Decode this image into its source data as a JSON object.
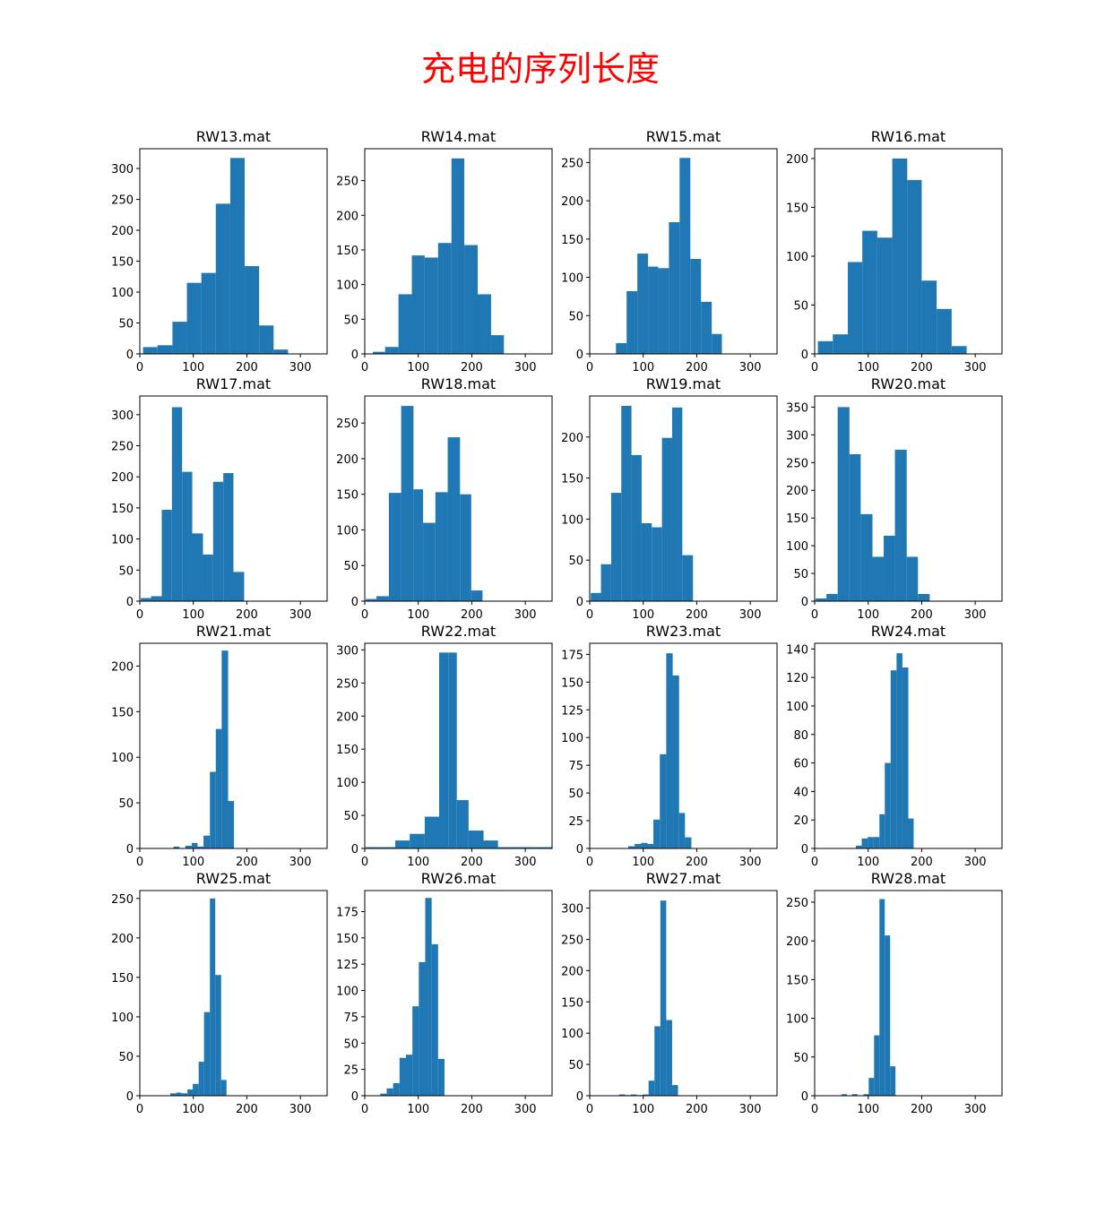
{
  "figure": {
    "title": "充电的序列长度",
    "title_color": "#ff0000",
    "bar_color": "#1f77b4"
  },
  "chart_data": [
    {
      "type": "bar",
      "title": "RW13.mat",
      "xlim": [
        0,
        350
      ],
      "xticks": [
        0,
        100,
        200,
        300
      ],
      "ylim": [
        0,
        332
      ],
      "yticks": [
        0,
        50,
        100,
        150,
        200,
        250,
        300
      ],
      "bins": [
        [
          6,
          33,
          11
        ],
        [
          33,
          61,
          14
        ],
        [
          61,
          88,
          52
        ],
        [
          88,
          115,
          115
        ],
        [
          115,
          142,
          131
        ],
        [
          142,
          169,
          243
        ],
        [
          169,
          196,
          317
        ],
        [
          196,
          223,
          142
        ],
        [
          223,
          250,
          46
        ],
        [
          250,
          277,
          7
        ]
      ]
    },
    {
      "type": "bar",
      "title": "RW14.mat",
      "xlim": [
        0,
        350
      ],
      "xticks": [
        0,
        100,
        200,
        300
      ],
      "ylim": [
        0,
        296
      ],
      "yticks": [
        0,
        50,
        100,
        150,
        200,
        250
      ],
      "bins": [
        [
          15,
          38,
          3
        ],
        [
          38,
          63,
          10
        ],
        [
          63,
          88,
          86
        ],
        [
          88,
          112,
          142
        ],
        [
          112,
          137,
          139
        ],
        [
          137,
          162,
          160
        ],
        [
          162,
          186,
          282
        ],
        [
          186,
          211,
          157
        ],
        [
          211,
          236,
          86
        ],
        [
          236,
          260,
          27
        ]
      ]
    },
    {
      "type": "bar",
      "title": "RW15.mat",
      "xlim": [
        0,
        350
      ],
      "xticks": [
        0,
        100,
        200,
        300
      ],
      "ylim": [
        0,
        268
      ],
      "yticks": [
        0,
        50,
        100,
        150,
        200,
        250
      ],
      "bins": [
        [
          49,
          69,
          14
        ],
        [
          69,
          89,
          82
        ],
        [
          89,
          109,
          131
        ],
        [
          109,
          128,
          114
        ],
        [
          128,
          148,
          112
        ],
        [
          148,
          168,
          172
        ],
        [
          168,
          188,
          256
        ],
        [
          188,
          208,
          124
        ],
        [
          208,
          228,
          68
        ],
        [
          228,
          247,
          26
        ]
      ]
    },
    {
      "type": "bar",
      "title": "RW16.mat",
      "xlim": [
        0,
        350
      ],
      "xticks": [
        0,
        100,
        200,
        300
      ],
      "ylim": [
        0,
        210
      ],
      "yticks": [
        0,
        50,
        100,
        150,
        200
      ],
      "bins": [
        [
          6,
          34,
          13
        ],
        [
          34,
          62,
          20
        ],
        [
          62,
          89,
          94
        ],
        [
          89,
          117,
          126
        ],
        [
          117,
          145,
          119
        ],
        [
          145,
          173,
          200
        ],
        [
          173,
          200,
          178
        ],
        [
          200,
          228,
          75
        ],
        [
          228,
          256,
          46
        ],
        [
          256,
          284,
          8
        ]
      ]
    },
    {
      "type": "bar",
      "title": "RW17.mat",
      "xlim": [
        0,
        350
      ],
      "xticks": [
        0,
        100,
        200,
        300
      ],
      "ylim": [
        0,
        330
      ],
      "yticks": [
        0,
        50,
        100,
        150,
        200,
        250,
        300
      ],
      "bins": [
        [
          2,
          21,
          5
        ],
        [
          21,
          41,
          8
        ],
        [
          41,
          60,
          147
        ],
        [
          60,
          79,
          312
        ],
        [
          79,
          98,
          208
        ],
        [
          98,
          118,
          109
        ],
        [
          118,
          137,
          75
        ],
        [
          137,
          156,
          192
        ],
        [
          156,
          175,
          206
        ],
        [
          175,
          195,
          47
        ]
      ]
    },
    {
      "type": "bar",
      "title": "RW18.mat",
      "xlim": [
        0,
        350
      ],
      "xticks": [
        0,
        100,
        200,
        300
      ],
      "ylim": [
        0,
        288
      ],
      "yticks": [
        0,
        50,
        100,
        150,
        200,
        250
      ],
      "bins": [
        [
          2,
          22,
          3
        ],
        [
          22,
          45,
          7
        ],
        [
          45,
          68,
          152
        ],
        [
          68,
          91,
          274
        ],
        [
          91,
          109,
          157
        ],
        [
          109,
          132,
          110
        ],
        [
          132,
          155,
          153
        ],
        [
          155,
          178,
          230
        ],
        [
          178,
          199,
          150
        ],
        [
          199,
          220,
          15
        ]
      ]
    },
    {
      "type": "bar",
      "title": "RW19.mat",
      "xlim": [
        0,
        350
      ],
      "xticks": [
        0,
        100,
        200,
        300
      ],
      "ylim": [
        0,
        250
      ],
      "yticks": [
        0,
        50,
        100,
        150,
        200
      ],
      "bins": [
        [
          2,
          21,
          10
        ],
        [
          21,
          40,
          45
        ],
        [
          40,
          59,
          132
        ],
        [
          59,
          78,
          238
        ],
        [
          78,
          97,
          178
        ],
        [
          97,
          116,
          95
        ],
        [
          116,
          135,
          90
        ],
        [
          135,
          154,
          199
        ],
        [
          154,
          173,
          236
        ],
        [
          173,
          193,
          56
        ]
      ]
    },
    {
      "type": "bar",
      "title": "RW20.mat",
      "xlim": [
        0,
        350
      ],
      "xticks": [
        0,
        100,
        200,
        300
      ],
      "ylim": [
        0,
        370
      ],
      "yticks": [
        0,
        50,
        100,
        150,
        200,
        250,
        300,
        350
      ],
      "bins": [
        [
          2,
          22,
          5
        ],
        [
          22,
          43,
          13
        ],
        [
          43,
          65,
          350
        ],
        [
          65,
          86,
          265
        ],
        [
          86,
          108,
          157
        ],
        [
          108,
          129,
          80
        ],
        [
          129,
          150,
          118
        ],
        [
          150,
          172,
          273
        ],
        [
          172,
          193,
          80
        ],
        [
          193,
          215,
          13
        ]
      ]
    },
    {
      "type": "bar",
      "title": "RW21.mat",
      "xlim": [
        0,
        350
      ],
      "xticks": [
        0,
        100,
        200,
        300
      ],
      "ylim": [
        0,
        225
      ],
      "yticks": [
        0,
        50,
        100,
        150,
        200
      ],
      "bins": [
        [
          63,
          74,
          2
        ],
        [
          74,
          85,
          0
        ],
        [
          85,
          97,
          3
        ],
        [
          97,
          108,
          6
        ],
        [
          108,
          119,
          2
        ],
        [
          119,
          131,
          14
        ],
        [
          131,
          142,
          84
        ],
        [
          142,
          153,
          131
        ],
        [
          153,
          165,
          217
        ],
        [
          165,
          176,
          52
        ]
      ]
    },
    {
      "type": "bar",
      "title": "RW22.mat",
      "xlim": [
        0,
        350
      ],
      "xticks": [
        0,
        100,
        200,
        300
      ],
      "ylim": [
        0,
        310
      ],
      "yticks": [
        0,
        50,
        100,
        150,
        200,
        250,
        300
      ],
      "bins": [
        [
          2,
          29,
          2
        ],
        [
          29,
          57,
          2
        ],
        [
          57,
          84,
          12
        ],
        [
          84,
          112,
          22
        ],
        [
          112,
          139,
          48
        ],
        [
          139,
          157,
          296
        ],
        [
          157,
          172,
          296
        ],
        [
          172,
          194,
          73
        ],
        [
          194,
          222,
          27
        ],
        [
          222,
          249,
          12
        ],
        [
          249,
          276,
          2
        ],
        [
          276,
          304,
          2
        ],
        [
          304,
          331,
          2
        ],
        [
          331,
          350,
          2
        ]
      ]
    },
    {
      "type": "bar",
      "title": "RW23.mat",
      "xlim": [
        0,
        350
      ],
      "xticks": [
        0,
        100,
        200,
        300
      ],
      "ylim": [
        0,
        185
      ],
      "yticks": [
        0,
        25,
        50,
        75,
        100,
        125,
        150,
        175
      ],
      "bins": [
        [
          72,
          84,
          2
        ],
        [
          84,
          96,
          4
        ],
        [
          96,
          108,
          5
        ],
        [
          108,
          119,
          4
        ],
        [
          119,
          131,
          26
        ],
        [
          131,
          143,
          85
        ],
        [
          143,
          155,
          176
        ],
        [
          155,
          167,
          156
        ],
        [
          167,
          178,
          32
        ],
        [
          178,
          190,
          10
        ]
      ]
    },
    {
      "type": "bar",
      "title": "RW24.mat",
      "xlim": [
        0,
        350
      ],
      "xticks": [
        0,
        100,
        200,
        300
      ],
      "ylim": [
        0,
        144
      ],
      "yticks": [
        0,
        20,
        40,
        60,
        80,
        100,
        120,
        140
      ],
      "bins": [
        [
          77,
          88,
          2
        ],
        [
          88,
          99,
          7
        ],
        [
          99,
          110,
          8
        ],
        [
          110,
          121,
          8
        ],
        [
          121,
          131,
          24
        ],
        [
          131,
          142,
          60
        ],
        [
          142,
          153,
          125
        ],
        [
          153,
          164,
          137
        ],
        [
          164,
          175,
          127
        ],
        [
          175,
          185,
          21
        ]
      ]
    },
    {
      "type": "bar",
      "title": "RW25.mat",
      "xlim": [
        0,
        350
      ],
      "xticks": [
        0,
        100,
        200,
        300
      ],
      "ylim": [
        0,
        260
      ],
      "yticks": [
        0,
        50,
        100,
        150,
        200,
        250
      ],
      "bins": [
        [
          57,
          68,
          3
        ],
        [
          68,
          78,
          4
        ],
        [
          78,
          89,
          3
        ],
        [
          89,
          99,
          8
        ],
        [
          99,
          110,
          15
        ],
        [
          110,
          120,
          43
        ],
        [
          120,
          131,
          106
        ],
        [
          131,
          141,
          250
        ],
        [
          141,
          152,
          153
        ],
        [
          152,
          162,
          20
        ]
      ]
    },
    {
      "type": "bar",
      "title": "RW26.mat",
      "xlim": [
        0,
        350
      ],
      "xticks": [
        0,
        100,
        200,
        300
      ],
      "ylim": [
        0,
        195
      ],
      "yticks": [
        0,
        25,
        50,
        75,
        100,
        125,
        150,
        175
      ],
      "bins": [
        [
          29,
          41,
          2
        ],
        [
          41,
          53,
          7
        ],
        [
          53,
          65,
          12
        ],
        [
          65,
          77,
          36
        ],
        [
          77,
          89,
          39
        ],
        [
          89,
          101,
          85
        ],
        [
          101,
          113,
          127
        ],
        [
          113,
          125,
          188
        ],
        [
          125,
          137,
          144
        ],
        [
          137,
          149,
          35
        ]
      ]
    },
    {
      "type": "bar",
      "title": "RW27.mat",
      "xlim": [
        0,
        350
      ],
      "xticks": [
        0,
        100,
        200,
        300
      ],
      "ylim": [
        0,
        328
      ],
      "yticks": [
        0,
        50,
        100,
        150,
        200,
        250,
        300
      ],
      "bins": [
        [
          55,
          66,
          2
        ],
        [
          66,
          77,
          1
        ],
        [
          77,
          88,
          2
        ],
        [
          88,
          99,
          1
        ],
        [
          99,
          110,
          2
        ],
        [
          110,
          121,
          24
        ],
        [
          121,
          132,
          111
        ],
        [
          132,
          143,
          312
        ],
        [
          143,
          154,
          121
        ],
        [
          154,
          165,
          17
        ]
      ]
    },
    {
      "type": "bar",
      "title": "RW28.mat",
      "xlim": [
        0,
        350
      ],
      "xticks": [
        0,
        100,
        200,
        300
      ],
      "ylim": [
        0,
        265
      ],
      "yticks": [
        0,
        50,
        100,
        150,
        200,
        250
      ],
      "bins": [
        [
          50,
          60,
          2
        ],
        [
          60,
          70,
          0
        ],
        [
          70,
          80,
          2
        ],
        [
          80,
          91,
          0
        ],
        [
          91,
          101,
          2
        ],
        [
          101,
          111,
          23
        ],
        [
          111,
          121,
          78
        ],
        [
          121,
          131,
          254
        ],
        [
          131,
          141,
          207
        ],
        [
          141,
          151,
          38
        ]
      ]
    }
  ]
}
